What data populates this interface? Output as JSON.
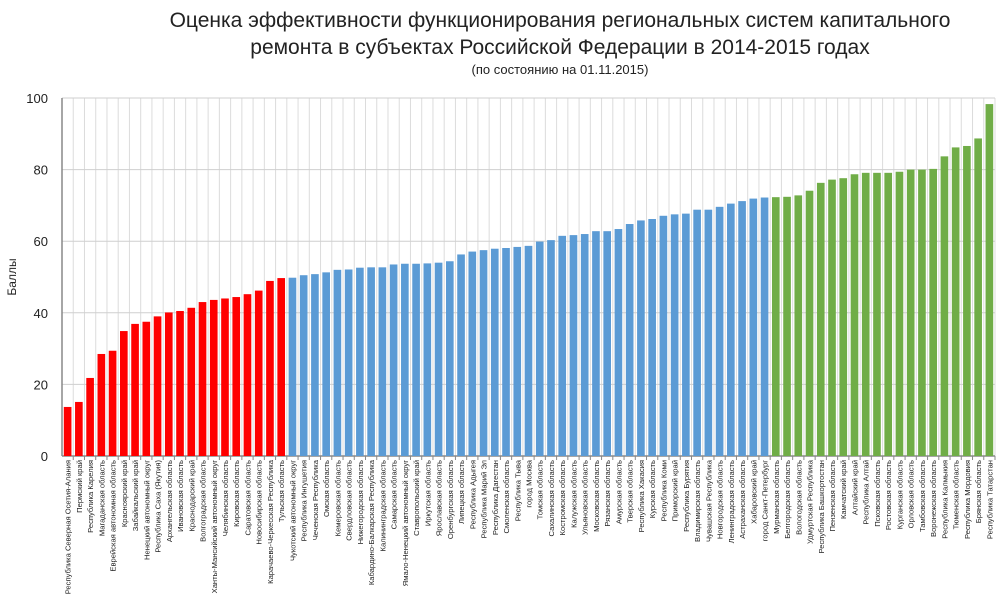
{
  "chart_data": {
    "type": "bar",
    "title_line1": "Оценка эффективности функционирования региональных систем капитального",
    "title_line2": "ремонта в субъектах Российской Федерации в 2014-2015 годах",
    "subtitle": "(по состоянию на 01.11.2015)",
    "xlabel": "",
    "ylabel": "Баллы",
    "ylim": [
      0,
      100
    ],
    "yticks": [
      "0",
      "20",
      "40",
      "60",
      "80",
      "100"
    ],
    "grid": true,
    "colors": {
      "low": "#ff0000",
      "mid": "#5b9bd5",
      "high": "#70ad47"
    },
    "categories": [
      "Республика Северная Осетия-Алания",
      "Пермский край",
      "Республика Карелия",
      "Магаданская область",
      "Еврейская автономная область",
      "Красноярский край",
      "Забайкальский край",
      "Ненецкий автономный округ",
      "Республика Саха (Якутия)",
      "Архангельская область",
      "Ивановская область",
      "Краснодарский край",
      "Волгоградская область",
      "Ханты-Мансийский автономный округ",
      "Челябинская область",
      "Кировская область",
      "Саратовская область",
      "Новосибирская область",
      "Карачаево-Черкесская Республика",
      "Тульская область",
      "Чукотский автономный округ",
      "Республика Ингушетия",
      "Чеченская Республика",
      "Омская область",
      "Кемеровская область",
      "Свердловская область",
      "Нижегородская область",
      "Кабардино-Балкарская Республика",
      "Калининградская область",
      "Самарская область",
      "Ямало-Ненецкий автономный округ",
      "Ставропольский край",
      "Иркутская область",
      "Ярославская область",
      "Оренбургская область",
      "Липецкая область",
      "Республика Адыгея",
      "Республика Марий Эл",
      "Республика Дагестан",
      "Смоленская область",
      "Республика Тыва",
      "город Москва",
      "Томская область",
      "Сахалинская область",
      "Костромская область",
      "Калужская область",
      "Ульяновская область",
      "Московская область",
      "Рязанская область",
      "Амурская область",
      "Тверская область",
      "Республика Хакасия",
      "Курская область",
      "Республика Коми",
      "Приморский край",
      "Республика Бурятия",
      "Владимирская область",
      "Чувашская Республика",
      "Новгородская область",
      "Ленинградская область",
      "Астраханская область",
      "Хабаровский край",
      "город Санкт-Петербург",
      "Мурманская область",
      "Белгородская область",
      "Вологодская область",
      "Удмуртская Республика",
      "Республика Башкортостан",
      "Пензенская область",
      "Камчатский край",
      "Алтайский край",
      "Республика Алтай",
      "Псковская область",
      "Ростовская область",
      "Курганская область",
      "Орловская область",
      "Тамбовская область",
      "Воронежская область",
      "Республика Калмыкия",
      "Тюменская область",
      "Республика Мордовия",
      "Брянская область",
      "Республика Татарстан"
    ],
    "values": [
      13.7,
      15.1,
      21.8,
      28.5,
      29.4,
      34.9,
      36.9,
      37.5,
      39.0,
      40.1,
      40.5,
      41.4,
      43.0,
      43.6,
      44.0,
      44.4,
      45.2,
      46.2,
      48.9,
      49.7,
      49.8,
      50.5,
      50.8,
      51.3,
      52.0,
      52.1,
      52.6,
      52.7,
      52.7,
      53.5,
      53.7,
      53.7,
      53.8,
      54.0,
      54.4,
      56.3,
      57.1,
      57.5,
      57.9,
      58.1,
      58.4,
      58.7,
      59.9,
      60.3,
      61.5,
      61.7,
      62.0,
      62.8,
      62.8,
      63.4,
      64.8,
      65.8,
      66.2,
      67.1,
      67.5,
      67.7,
      68.8,
      68.8,
      69.6,
      70.5,
      71.2,
      71.9,
      72.2,
      72.3,
      72.4,
      72.8,
      74.1,
      76.3,
      77.2,
      77.6,
      78.7,
      79.1,
      79.1,
      79.1,
      79.4,
      80.0,
      80.0,
      80.2,
      83.7,
      86.2,
      86.6,
      88.7,
      98.3
    ],
    "groups": {
      "low_count": 20,
      "mid_count": 43,
      "high_count": 20
    }
  }
}
